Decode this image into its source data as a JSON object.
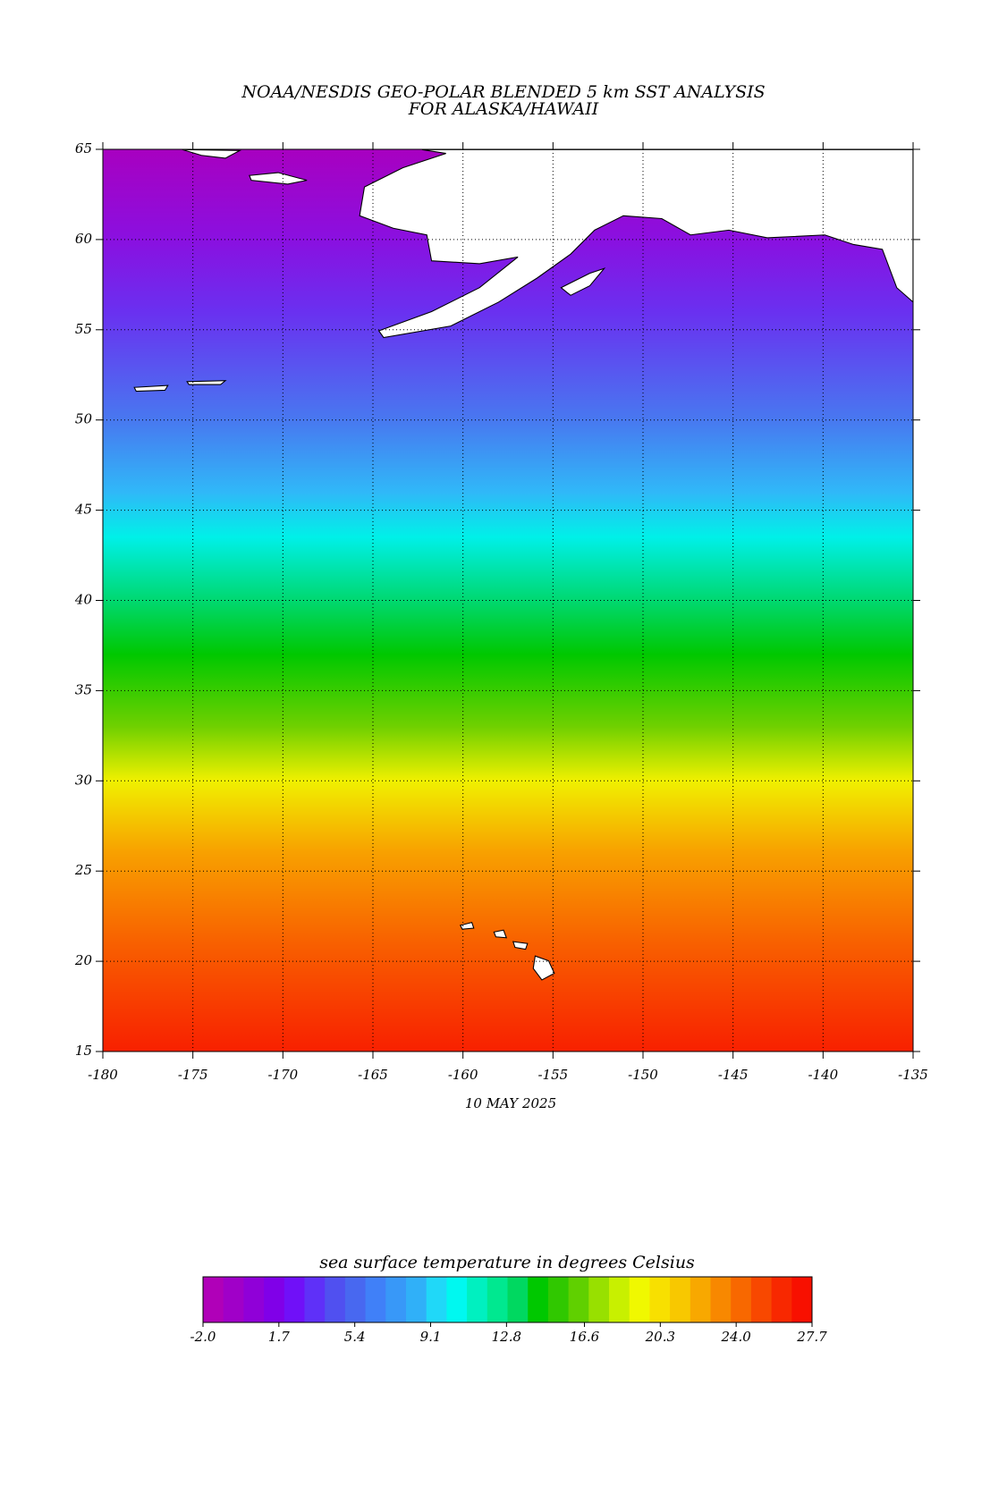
{
  "chart_data": {
    "type": "map",
    "title": "NOAA/NESDIS GEO-POLAR BLENDED 5 km SST ANALYSIS",
    "subtitle": "FOR ALASKA/HAWAII",
    "date": "10 MAY 2025",
    "xlim": [
      -180,
      -135
    ],
    "xticks": [
      -180,
      -175,
      -170,
      -165,
      -160,
      -155,
      -150,
      -145,
      -140,
      -135
    ],
    "ylim": [
      15,
      65
    ],
    "yticks": [
      15,
      20,
      25,
      30,
      35,
      40,
      45,
      50,
      55,
      60,
      65
    ],
    "grid": true,
    "colorbar": {
      "label": "sea surface temperature in degrees Celsius",
      "lim": [
        -2,
        27.7
      ],
      "ticks": [
        {
          "value": -2,
          "label": "-2.0"
        },
        1.7,
        5.4,
        9.1,
        12.8,
        16.6,
        20.3,
        {
          "value": 24,
          "label": "24.0"
        },
        27.7
      ],
      "colors": [
        "#b000b8",
        "#a000c8",
        "#9000d8",
        "#8000e8",
        "#7010f8",
        "#5f30f8",
        "#5050f0",
        "#4868f0",
        "#4080f8",
        "#3898f8",
        "#30b0f8",
        "#20d8f8",
        "#00f8f0",
        "#00f0c0",
        "#00e890",
        "#00d860",
        "#00c800",
        "#30c800",
        "#60d000",
        "#98e000",
        "#c8f000",
        "#f0f800",
        "#f8e000",
        "#f8c800",
        "#f8a800",
        "#f88800",
        "#f86800",
        "#f84800",
        "#f82800",
        "#f81000"
      ]
    }
  }
}
